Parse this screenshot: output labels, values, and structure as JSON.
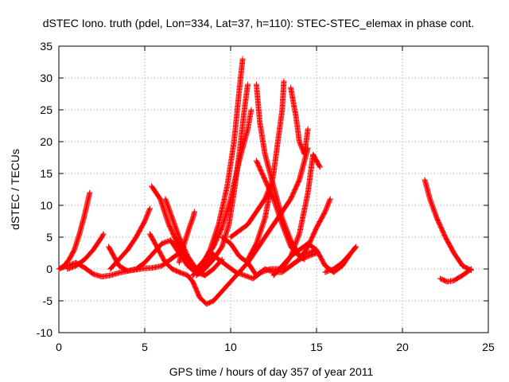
{
  "chart_data": {
    "type": "scatter",
    "title": "dSTEC Iono. truth (pdel, Lon=334, Lat=37, h=110): STEC-STEC_elemax in phase cont.",
    "xlabel": "GPS time / hours of day 357 of year 2011",
    "ylabel": "dSTEC  / TECUs",
    "xlim": [
      0,
      25
    ],
    "ylim": [
      -10,
      35
    ],
    "x_ticks": [
      0,
      5,
      10,
      15,
      20,
      25
    ],
    "y_ticks": [
      -10,
      -5,
      0,
      5,
      10,
      15,
      20,
      25,
      30,
      35
    ],
    "grid": true,
    "legend": "none",
    "marker": "plus",
    "color": "#ff0000",
    "series": [
      {
        "points": [
          [
            0,
            0
          ],
          [
            0.3,
            0.5
          ],
          [
            0.6,
            1.5
          ],
          [
            0.9,
            3
          ],
          [
            1.2,
            5.5
          ],
          [
            1.5,
            8.5
          ],
          [
            1.8,
            12
          ]
        ]
      },
      {
        "points": [
          [
            0,
            0
          ],
          [
            0.5,
            0.5
          ],
          [
            1,
            1
          ],
          [
            1.5,
            0.2
          ],
          [
            2,
            -0.8
          ],
          [
            2.5,
            -1.2
          ],
          [
            3,
            -1
          ],
          [
            3.5,
            -0.6
          ],
          [
            4,
            -0.3
          ],
          [
            4.5,
            -0.1
          ],
          [
            5,
            0.1
          ],
          [
            5.5,
            0.2
          ],
          [
            6,
            0.5
          ],
          [
            6.5,
            1.5
          ],
          [
            7,
            2.5
          ],
          [
            7.5,
            1.5
          ],
          [
            8,
            0
          ],
          [
            8.5,
            -1
          ]
        ]
      },
      {
        "points": [
          [
            0.5,
            0
          ],
          [
            1,
            0.5
          ],
          [
            1.5,
            1.5
          ],
          [
            2,
            3
          ],
          [
            2.5,
            5
          ],
          [
            2.6,
            5.5
          ]
        ]
      },
      {
        "points": [
          [
            2.9,
            3.5
          ],
          [
            3.2,
            2
          ],
          [
            3.5,
            0.5
          ],
          [
            4,
            -0.3
          ],
          [
            4.5,
            0
          ],
          [
            5,
            1
          ],
          [
            5.5,
            2.5
          ],
          [
            6,
            4
          ],
          [
            6.5,
            4.5
          ],
          [
            7,
            2.5
          ],
          [
            7.5,
            0.5
          ],
          [
            8,
            -0.5
          ],
          [
            8.5,
            -1
          ],
          [
            9,
            0
          ],
          [
            9.5,
            1.5
          ]
        ]
      },
      {
        "points": [
          [
            3,
            0
          ],
          [
            3.5,
            1.5
          ],
          [
            4,
            3
          ],
          [
            4.5,
            5
          ],
          [
            5,
            7.5
          ],
          [
            5.3,
            9.5
          ]
        ]
      },
      {
        "points": [
          [
            5.3,
            5.5
          ],
          [
            5.8,
            3
          ],
          [
            6.2,
            1
          ],
          [
            6.6,
            0
          ],
          [
            7,
            -0.5
          ],
          [
            7.5,
            -1
          ]
        ]
      },
      {
        "points": [
          [
            5.4,
            13
          ],
          [
            5.9,
            11
          ],
          [
            6.4,
            7
          ],
          [
            6.9,
            4
          ],
          [
            7.4,
            1.5
          ],
          [
            7.9,
            0
          ],
          [
            8.3,
            -0.5
          ]
        ]
      },
      {
        "points": [
          [
            6.2,
            11
          ],
          [
            6.6,
            8
          ],
          [
            7,
            5
          ],
          [
            7.5,
            2
          ],
          [
            8,
            0
          ],
          [
            8.5,
            -1
          ]
        ]
      },
      {
        "points": [
          [
            7.5,
            -1
          ],
          [
            7.8,
            -2
          ],
          [
            8.2,
            -4.5
          ],
          [
            8.6,
            -5.5
          ],
          [
            9,
            -5
          ],
          [
            9.5,
            -3.5
          ],
          [
            10,
            -2
          ],
          [
            10.5,
            -0.5
          ],
          [
            11,
            1
          ],
          [
            11.5,
            3
          ],
          [
            12,
            5
          ],
          [
            12.5,
            7
          ],
          [
            13,
            9
          ],
          [
            13.5,
            11
          ],
          [
            14,
            14
          ],
          [
            14.5,
            19
          ]
        ]
      },
      {
        "points": [
          [
            6.8,
            5
          ],
          [
            7.1,
            3
          ],
          [
            7.4,
            1
          ],
          [
            7.7,
            0
          ],
          [
            8,
            -0.3
          ],
          [
            8.3,
            0
          ],
          [
            8.6,
            1
          ],
          [
            8.9,
            2
          ]
        ]
      },
      {
        "points": [
          [
            7,
            1
          ],
          [
            7.3,
            4
          ],
          [
            7.6,
            6.5
          ],
          [
            7.8,
            8
          ],
          [
            7.9,
            9
          ]
        ]
      },
      {
        "points": [
          [
            8,
            0
          ],
          [
            8.5,
            1.5
          ],
          [
            9,
            3.5
          ],
          [
            9.5,
            6.5
          ],
          [
            10,
            11
          ],
          [
            10.5,
            17
          ],
          [
            11,
            22
          ],
          [
            11.2,
            25
          ]
        ]
      },
      {
        "points": [
          [
            8,
            -1
          ],
          [
            8.5,
            0
          ],
          [
            9,
            1.5
          ],
          [
            9.5,
            3.5
          ],
          [
            9.9,
            7
          ],
          [
            10.2,
            12
          ],
          [
            10.5,
            18
          ],
          [
            10.8,
            25
          ],
          [
            11,
            29
          ]
        ]
      },
      {
        "points": [
          [
            7.8,
            -1
          ],
          [
            8.3,
            0.5
          ],
          [
            8.8,
            3
          ],
          [
            9.3,
            7
          ],
          [
            9.8,
            13
          ],
          [
            10.2,
            20
          ],
          [
            10.5,
            28
          ],
          [
            10.7,
            33
          ]
        ]
      },
      {
        "points": [
          [
            9.5,
            5
          ],
          [
            10,
            4
          ],
          [
            10.5,
            2
          ],
          [
            11,
            1
          ],
          [
            11.5,
            -1
          ],
          [
            12,
            0
          ],
          [
            12.5,
            -0.5
          ],
          [
            13,
            -0.5
          ],
          [
            13.5,
            0.5
          ],
          [
            14,
            1.5
          ],
          [
            14.5,
            2
          ],
          [
            15,
            2.5
          ]
        ]
      },
      {
        "points": [
          [
            8.8,
            2.8
          ],
          [
            9.3,
            1.5
          ],
          [
            9.8,
            0.5
          ],
          [
            10.3,
            -0.5
          ],
          [
            10.8,
            -1
          ],
          [
            11.3,
            -1.5
          ],
          [
            11.8,
            -0.5
          ],
          [
            12.3,
            0
          ],
          [
            12.8,
            0
          ]
        ]
      },
      {
        "points": [
          [
            11.5,
            29
          ],
          [
            11.7,
            23
          ],
          [
            12,
            18
          ],
          [
            12.5,
            13
          ],
          [
            13,
            8
          ],
          [
            13.5,
            4.5
          ],
          [
            14,
            2
          ],
          [
            14.3,
            1.5
          ]
        ]
      },
      {
        "points": [
          [
            11.5,
            17
          ],
          [
            12,
            14
          ],
          [
            12.5,
            11
          ],
          [
            13,
            7
          ],
          [
            13.5,
            3.5
          ],
          [
            14,
            2
          ],
          [
            14.5,
            2.5
          ],
          [
            15,
            3
          ]
        ]
      },
      {
        "points": [
          [
            10,
            5
          ],
          [
            10.5,
            6
          ],
          [
            11,
            7
          ],
          [
            11.5,
            9
          ],
          [
            12,
            11
          ],
          [
            12.3,
            13
          ]
        ]
      },
      {
        "points": [
          [
            11,
            1.5
          ],
          [
            11.5,
            4
          ],
          [
            12,
            8
          ],
          [
            12.5,
            15
          ],
          [
            13,
            25
          ],
          [
            13.1,
            29.5
          ]
        ]
      },
      {
        "points": [
          [
            13,
            0
          ],
          [
            13.5,
            2
          ],
          [
            14,
            5.5
          ],
          [
            14.5,
            12
          ],
          [
            14.8,
            18
          ],
          [
            15.2,
            16
          ]
        ]
      },
      {
        "points": [
          [
            13.5,
            28.5
          ],
          [
            13.8,
            24
          ],
          [
            14,
            20
          ],
          [
            14.3,
            18
          ],
          [
            14.5,
            22
          ]
        ]
      },
      {
        "points": [
          [
            12.5,
            -1
          ],
          [
            13,
            0.5
          ],
          [
            13.5,
            2
          ],
          [
            14,
            3
          ],
          [
            14.5,
            4
          ],
          [
            15,
            3
          ],
          [
            15.5,
            0.5
          ],
          [
            16,
            -0.5
          ],
          [
            16.5,
            0.5
          ],
          [
            17,
            2.5
          ],
          [
            17.3,
            3.5
          ]
        ]
      },
      {
        "points": [
          [
            13.5,
            0.5
          ],
          [
            14,
            1.5
          ],
          [
            14.5,
            3.5
          ],
          [
            15,
            6.5
          ],
          [
            15.5,
            9
          ],
          [
            15.8,
            11
          ]
        ]
      },
      {
        "points": [
          [
            15.5,
            -0.5
          ],
          [
            16,
            0
          ],
          [
            16.5,
            1
          ],
          [
            17,
            2.5
          ],
          [
            17.3,
            3.5
          ]
        ]
      },
      {
        "points": [
          [
            21.3,
            14
          ],
          [
            21.6,
            11
          ],
          [
            22,
            8
          ],
          [
            22.5,
            5
          ],
          [
            23,
            2.5
          ],
          [
            23.5,
            0.5
          ],
          [
            24,
            -0.2
          ]
        ]
      },
      {
        "points": [
          [
            22.2,
            -1.5
          ],
          [
            22.6,
            -2
          ],
          [
            23,
            -1.8
          ],
          [
            23.5,
            -1
          ],
          [
            24,
            0
          ]
        ]
      }
    ]
  }
}
